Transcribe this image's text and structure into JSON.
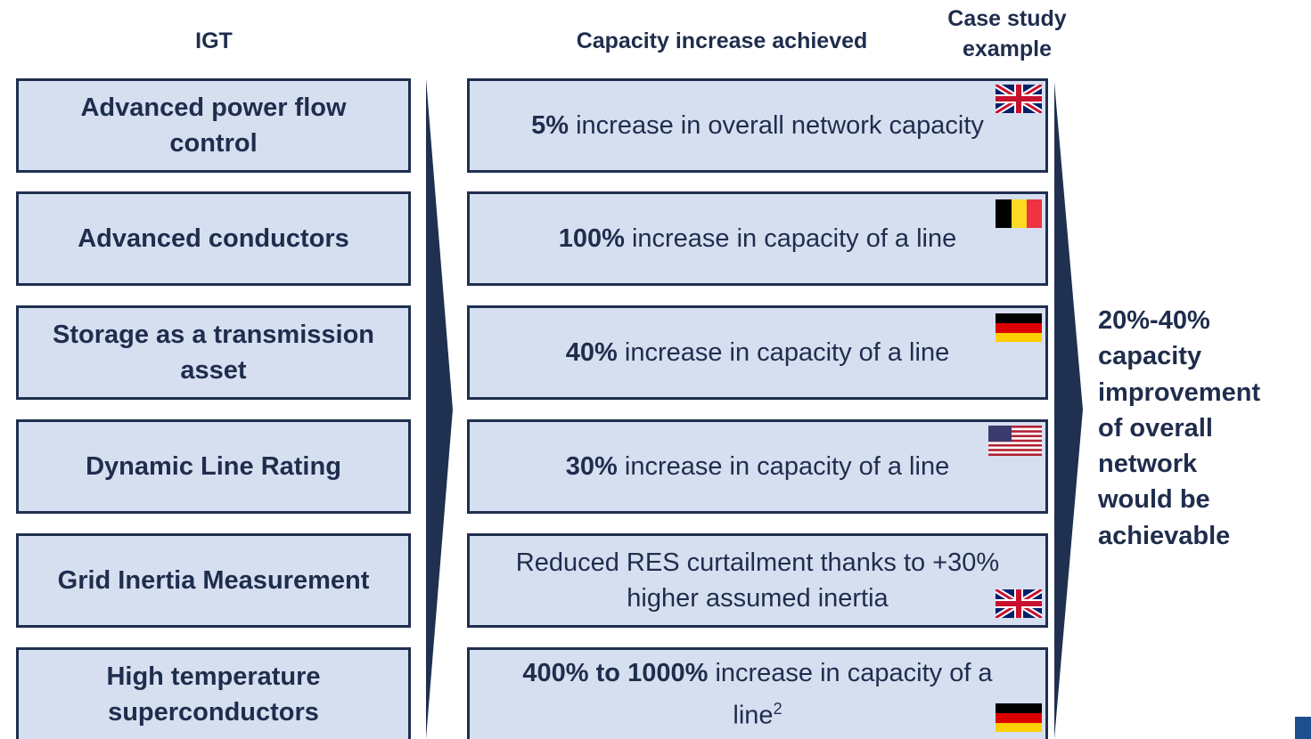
{
  "header": {
    "igt": "IGT",
    "capacity": "Capacity increase achieved",
    "case_study": "Case study example"
  },
  "rows": [
    {
      "igt": "Advanced power flow control",
      "bold": "5%",
      "text": " increase in overall network capacity"
    },
    {
      "igt": "Advanced conductors",
      "bold": "100%",
      "text": " increase in capacity of a line"
    },
    {
      "igt": "Storage as a transmission asset",
      "bold": "40%",
      "text": " increase in capacity of a line"
    },
    {
      "igt": "Dynamic Line Rating",
      "bold": "30%",
      "text": " increase in capacity of a line"
    },
    {
      "igt": "Grid Inertia Measurement",
      "text": "Reduced RES curtailment thanks to +30% higher assumed inertia"
    },
    {
      "igt": "High temperature superconductors",
      "bold": "400% to 1000%",
      "text": " increase in capacity of a line",
      "sup": "2"
    }
  ],
  "conclusion": [
    "20%-40%",
    "capacity",
    "improvement",
    "of overall",
    "network",
    "would be",
    "achievable"
  ]
}
